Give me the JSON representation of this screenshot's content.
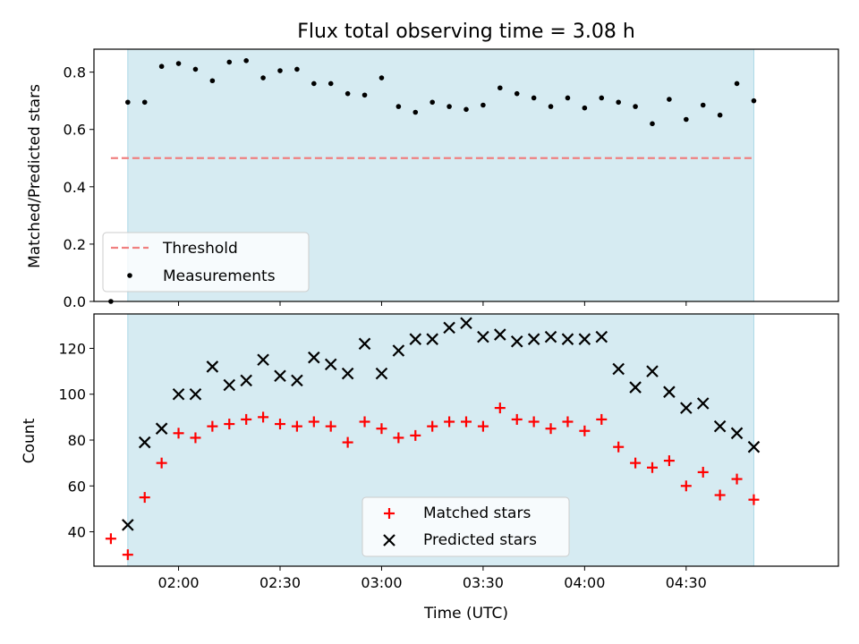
{
  "chart_data": [
    {
      "type": "scatter",
      "title": "Flux total observing time = 3.08 h",
      "ylabel": "Matched/Predicted stars",
      "xlabel": "",
      "xlim": [
        "01:35",
        "05:15"
      ],
      "ylim": [
        0,
        0.88
      ],
      "yticks": [
        "0.0",
        "0.2",
        "0.4",
        "0.6",
        "0.8"
      ],
      "shaded_span": [
        "01:45",
        "04:50"
      ],
      "threshold": {
        "name": "Threshold",
        "y": 0.5,
        "x": [
          "01:40",
          "04:50"
        ],
        "color": "#f08080"
      },
      "series": [
        {
          "name": "Measurements",
          "color": "#000000",
          "marker": "dot",
          "x": [
            "01:40",
            "01:45",
            "01:50",
            "01:55",
            "02:00",
            "02:05",
            "02:10",
            "02:15",
            "02:20",
            "02:25",
            "02:30",
            "02:35",
            "02:40",
            "02:45",
            "02:50",
            "02:55",
            "03:00",
            "03:05",
            "03:10",
            "03:15",
            "03:20",
            "03:25",
            "03:30",
            "03:35",
            "03:40",
            "03:45",
            "03:50",
            "03:55",
            "04:00",
            "04:05",
            "04:10",
            "04:15",
            "04:20",
            "04:25",
            "04:30",
            "04:35",
            "04:40",
            "04:45",
            "04:50"
          ],
          "y": [
            0.0,
            0.695,
            0.695,
            0.82,
            0.83,
            0.81,
            0.77,
            0.835,
            0.84,
            0.78,
            0.805,
            0.81,
            0.76,
            0.76,
            0.725,
            0.72,
            0.78,
            0.68,
            0.66,
            0.695,
            0.68,
            0.67,
            0.685,
            0.745,
            0.725,
            0.71,
            0.68,
            0.71,
            0.675,
            0.71,
            0.695,
            0.68,
            0.62,
            0.705,
            0.635,
            0.685,
            0.65,
            0.76,
            0.7
          ]
        }
      ],
      "legend": [
        "Threshold",
        "Measurements"
      ],
      "legend_position": "lower-left",
      "shade_color": "#add8e6"
    },
    {
      "type": "scatter",
      "title": "",
      "ylabel": "Count",
      "xlabel": "Time (UTC)",
      "xlim": [
        "01:35",
        "05:15"
      ],
      "ylim": [
        25,
        135
      ],
      "yticks": [
        "40",
        "60",
        "80",
        "100",
        "120"
      ],
      "xticks": [
        "02:00",
        "02:30",
        "03:00",
        "03:30",
        "04:00",
        "04:30"
      ],
      "shaded_span": [
        "01:45",
        "04:50"
      ],
      "series": [
        {
          "name": "Matched stars",
          "color": "#ff0000",
          "marker": "plus",
          "x": [
            "01:40",
            "01:45",
            "01:50",
            "01:55",
            "02:00",
            "02:05",
            "02:10",
            "02:15",
            "02:20",
            "02:25",
            "02:30",
            "02:35",
            "02:40",
            "02:45",
            "02:50",
            "02:55",
            "03:00",
            "03:05",
            "03:10",
            "03:15",
            "03:20",
            "03:25",
            "03:30",
            "03:35",
            "03:40",
            "03:45",
            "03:50",
            "03:55",
            "04:00",
            "04:05",
            "04:10",
            "04:15",
            "04:20",
            "04:25",
            "04:30",
            "04:35",
            "04:40",
            "04:45",
            "04:50"
          ],
          "y": [
            37,
            30,
            55,
            70,
            83,
            81,
            86,
            87,
            89,
            90,
            87,
            86,
            88,
            86,
            79,
            88,
            85,
            81,
            82,
            86,
            88,
            88,
            86,
            94,
            89,
            88,
            85,
            88,
            84,
            89,
            77,
            70,
            68,
            71,
            60,
            66,
            56,
            63,
            54
          ]
        },
        {
          "name": "Predicted stars",
          "color": "#000000",
          "marker": "x",
          "x": [
            "01:45",
            "01:50",
            "01:55",
            "02:00",
            "02:05",
            "02:10",
            "02:15",
            "02:20",
            "02:25",
            "02:30",
            "02:35",
            "02:40",
            "02:45",
            "02:50",
            "02:55",
            "03:00",
            "03:05",
            "03:10",
            "03:15",
            "03:20",
            "03:25",
            "03:30",
            "03:35",
            "03:40",
            "03:45",
            "03:50",
            "03:55",
            "04:00",
            "04:05",
            "04:10",
            "04:15",
            "04:20",
            "04:25",
            "04:30",
            "04:35",
            "04:40",
            "04:45",
            "04:50"
          ],
          "y": [
            43,
            79,
            85,
            100,
            100,
            112,
            104,
            106,
            115,
            108,
            106,
            116,
            113,
            109,
            122,
            109,
            119,
            124,
            124,
            129,
            131,
            125,
            126,
            123,
            124,
            125,
            124,
            124,
            125,
            111,
            103,
            110,
            101,
            94,
            96,
            86,
            83,
            77
          ]
        }
      ],
      "legend": [
        "Matched stars",
        "Predicted stars"
      ],
      "legend_position": "lower-center",
      "shade_color": "#add8e6"
    }
  ]
}
